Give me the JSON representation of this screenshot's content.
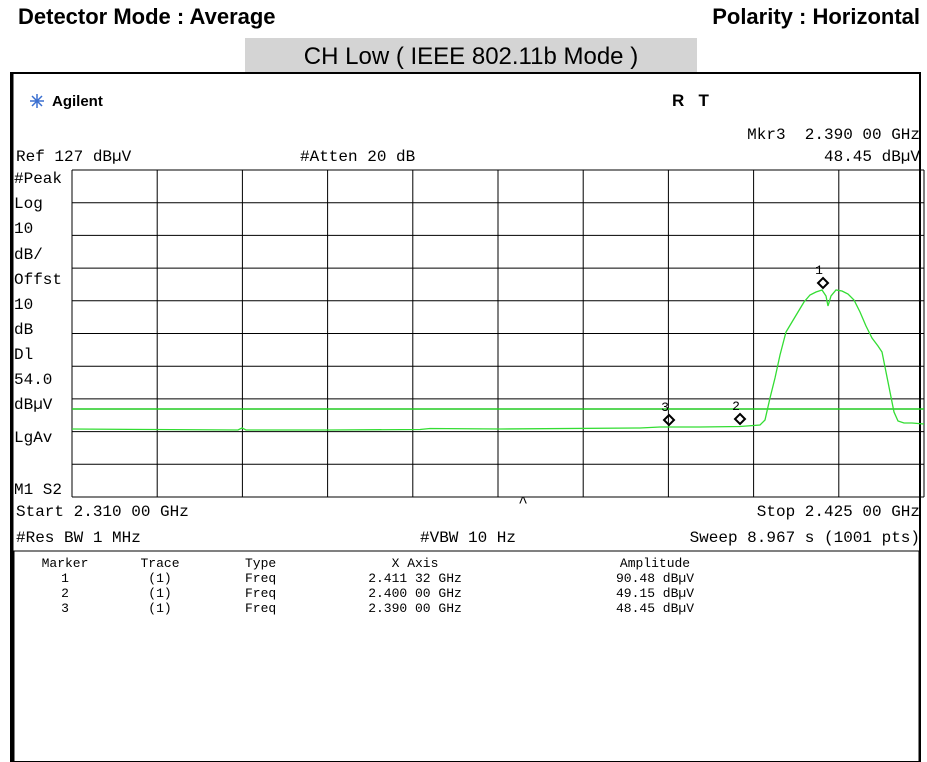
{
  "header": {
    "detector": "Detector Mode : Average",
    "polarity": "Polarity : Horizontal"
  },
  "title": "CH Low ( IEEE 802.11b Mode )",
  "screen": {
    "brand": "Agilent",
    "status": "R   T",
    "marker_readout": "Mkr3  2.390 00 GHz",
    "ref": "Ref 127 dBµV",
    "atten": "#Atten 20 dB",
    "marker_amplitude": "48.45 dBµV",
    "left_labels": [
      "#Peak",
      "Log",
      "10",
      "dB/",
      "Offst",
      "10",
      "dB",
      "Dl",
      "54.0",
      "dBµV",
      "LgAv",
      "M1  S2"
    ],
    "marker_flags": [
      "1",
      "2",
      "3"
    ],
    "start": "Start 2.310 00 GHz",
    "stop": "Stop 2.425 00 GHz",
    "res_bw": "#Res BW 1 MHz",
    "vbw": "#VBW 10 Hz",
    "sweep": "Sweep 8.967 s (1001 pts)"
  },
  "table": {
    "columns": [
      "Marker",
      "Trace",
      "Type",
      "X Axis",
      "Amplitude"
    ],
    "rows": [
      [
        "1",
        "(1)",
        "Freq",
        "2.411 32 GHz",
        "90.48 dBµV"
      ],
      [
        "2",
        "(1)",
        "Freq",
        "2.400 00 GHz",
        "49.15 dBµV"
      ],
      [
        "3",
        "(1)",
        "Freq",
        "2.390 00 GHz",
        "48.45 dBµV"
      ]
    ]
  }
}
